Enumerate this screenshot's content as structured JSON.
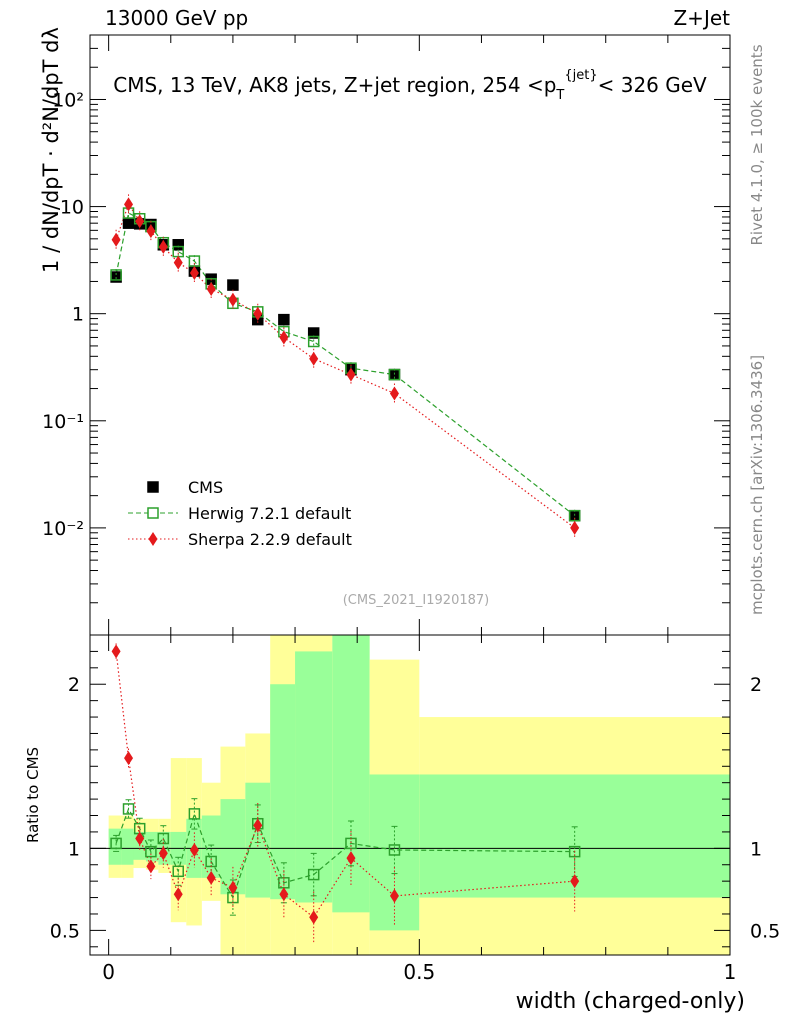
{
  "header": {
    "energy_label": "13000 GeV pp",
    "process_label": "Z+Jet"
  },
  "side_labels": {
    "rivet": "Rivet 4.1.0, ≥ 100k events",
    "mcplots": "mcplots.cern.ch [arXiv:1306.3436]"
  },
  "chart_data": {
    "type": "scatter",
    "title": "CMS, 13 TeV, AK8 jets, Z+jet region, 254 < pT jet < 326 GeV",
    "analysis_id": "(CMS_2021_I1920187)",
    "xlabel": "width (charged-only)",
    "ylabel_main": "1/dN/dpT  d²N/dpT dλ",
    "ylabel_ratio": "Ratio to CMS",
    "xlim": [
      -0.03,
      1.0
    ],
    "ylim_main": [
      0.001,
      400
    ],
    "yscale_main": "log",
    "ylim_ratio": [
      0.35,
      2.3
    ],
    "x_ticks": [
      "0",
      "0.5",
      "1"
    ],
    "main_y_ticks": [
      "10⁻²",
      "10⁻¹",
      "1",
      "10",
      "10²"
    ],
    "ratio_y_ticks": [
      "0.5",
      "1",
      "2"
    ],
    "legend_position": "bottom-left",
    "series": [
      {
        "name": "CMS",
        "marker": "square",
        "color": "#000000",
        "x": [
          0.012,
          0.032,
          0.05,
          0.068,
          0.088,
          0.112,
          0.138,
          0.165,
          0.2,
          0.24,
          0.282,
          0.33,
          0.39,
          0.46,
          0.75
        ],
        "y": [
          2.2,
          7.0,
          6.9,
          6.8,
          4.4,
          4.4,
          2.5,
          2.1,
          1.85,
          0.88,
          0.88,
          0.66,
          0.3,
          0.27,
          0.013
        ]
      },
      {
        "name": "Herwig 7.2.1 default",
        "marker": "open-square",
        "line": "dashed",
        "color": "#2ca02c",
        "x": [
          0.012,
          0.032,
          0.05,
          0.068,
          0.088,
          0.112,
          0.138,
          0.165,
          0.2,
          0.24,
          0.282,
          0.33,
          0.39,
          0.46,
          0.75
        ],
        "y": [
          2.3,
          8.7,
          7.7,
          6.5,
          4.6,
          3.8,
          3.1,
          1.9,
          1.25,
          1.04,
          0.68,
          0.55,
          0.31,
          0.27,
          0.013
        ],
        "ratio": [
          1.03,
          1.24,
          1.12,
          0.98,
          1.06,
          0.86,
          1.21,
          0.92,
          0.7,
          1.15,
          0.79,
          0.84,
          1.03,
          0.99,
          0.98
        ]
      },
      {
        "name": "Sherpa 2.2.9 default",
        "marker": "diamond",
        "line": "dotted",
        "color": "#e41a1c",
        "x": [
          0.012,
          0.032,
          0.05,
          0.068,
          0.088,
          0.112,
          0.138,
          0.165,
          0.2,
          0.24,
          0.282,
          0.33,
          0.39,
          0.46,
          0.75
        ],
        "y": [
          4.9,
          10.5,
          7.3,
          5.9,
          4.2,
          3.0,
          2.4,
          1.7,
          1.35,
          1.0,
          0.6,
          0.38,
          0.27,
          0.18,
          0.01
        ],
        "ratio": [
          2.2,
          1.55,
          1.06,
          0.89,
          0.97,
          0.72,
          0.99,
          0.82,
          0.76,
          1.14,
          0.72,
          0.58,
          0.94,
          0.71,
          0.8
        ]
      }
    ],
    "uncertainty_bands": {
      "x_edges": [
        0.0,
        0.02,
        0.04,
        0.06,
        0.08,
        0.1,
        0.125,
        0.15,
        0.18,
        0.22,
        0.26,
        0.3,
        0.36,
        0.42,
        0.5,
        1.0
      ],
      "inner_low": [
        0.9,
        0.9,
        0.93,
        0.92,
        0.9,
        0.9,
        0.82,
        0.82,
        0.72,
        0.7,
        0.69,
        0.67,
        0.61,
        0.5,
        0.7
      ],
      "inner_high": [
        1.12,
        1.12,
        1.1,
        1.1,
        1.1,
        1.1,
        1.18,
        1.2,
        1.3,
        1.4,
        2.0,
        2.2,
        2.3,
        1.45,
        1.45
      ],
      "outer_low": [
        0.82,
        0.82,
        0.88,
        0.87,
        0.85,
        0.55,
        0.53,
        0.68,
        0.35,
        0.35,
        0.35,
        0.35,
        0.35,
        0.35,
        0.35
      ],
      "outer_high": [
        1.2,
        1.2,
        1.18,
        1.18,
        1.18,
        1.55,
        1.55,
        1.4,
        1.62,
        1.7,
        2.3,
        2.3,
        2.3,
        2.15,
        1.8
      ],
      "inner_color": "#99ff99",
      "outer_color": "#ffff99"
    }
  }
}
